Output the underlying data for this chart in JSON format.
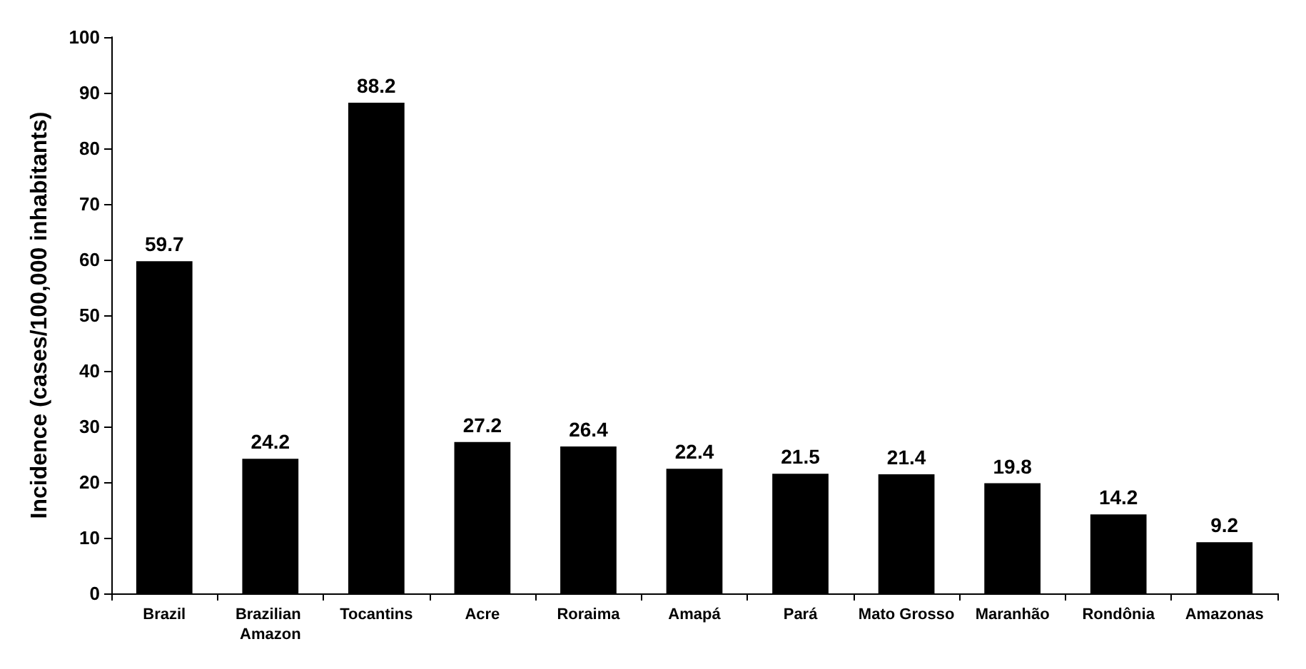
{
  "chart_data": {
    "type": "bar",
    "ylabel": "Incidence (cases/100,000 inhabitants)",
    "categories": [
      "Brazil",
      "Brazilian Amazon",
      "Tocantins",
      "Acre",
      "Roraima",
      "Amapá",
      "Pará",
      "Mato Grosso",
      "Maranhão",
      "Rondônia",
      "Amazonas"
    ],
    "values": [
      59.7,
      24.2,
      88.2,
      27.2,
      26.4,
      22.4,
      21.5,
      21.4,
      19.8,
      14.2,
      9.2
    ],
    "color": "#000000",
    "ylim": [
      0,
      100
    ],
    "yticks": [
      0,
      10,
      20,
      30,
      40,
      50,
      60,
      70,
      80,
      90,
      100
    ],
    "grid": false,
    "data_labels": true
  }
}
